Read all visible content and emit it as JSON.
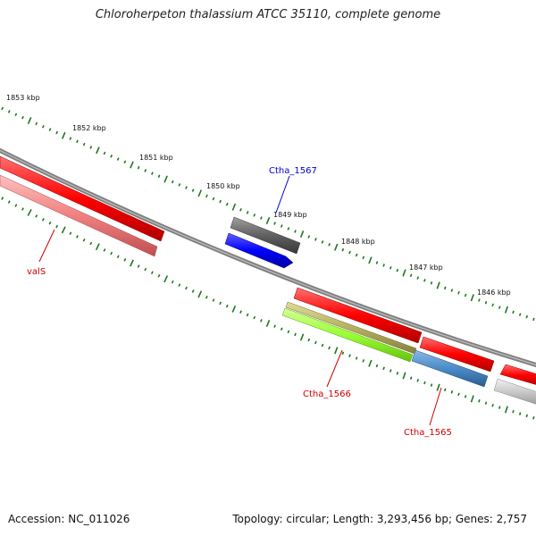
{
  "header": {
    "title": "Chloroherpeton thalassium ATCC 35110, complete genome"
  },
  "footer": {
    "accession": "Accession: NC_011026",
    "summary": "Topology: circular; Length: 3,293,456 bp; Genes: 2,757"
  },
  "scale": {
    "tick_labels": [
      "1853 kbp",
      "1852 kbp",
      "1851 kbp",
      "1850 kbp",
      "1849 kbp",
      "1848 kbp",
      "1847 kbp",
      "1846 kbp"
    ]
  },
  "genes": {
    "labels": [
      "Ctha_1567",
      "valS",
      "Ctha_1566",
      "Ctha_1565"
    ]
  },
  "colors": {
    "backbone": "#808080",
    "forward_cds": "#ff0000",
    "reverse_cds": "#f08080",
    "highlight_cds": "#0000ff",
    "dark_cds": "#606060",
    "olive_feature": "#b5b060",
    "lime_feature": "#99ff33",
    "steel_feature": "#4a8cc8",
    "light_gray_feature": "#c8c8c8",
    "tick_green": "#1a7a1a",
    "label_blue": "#0000cc",
    "label_red": "#cc0000"
  }
}
